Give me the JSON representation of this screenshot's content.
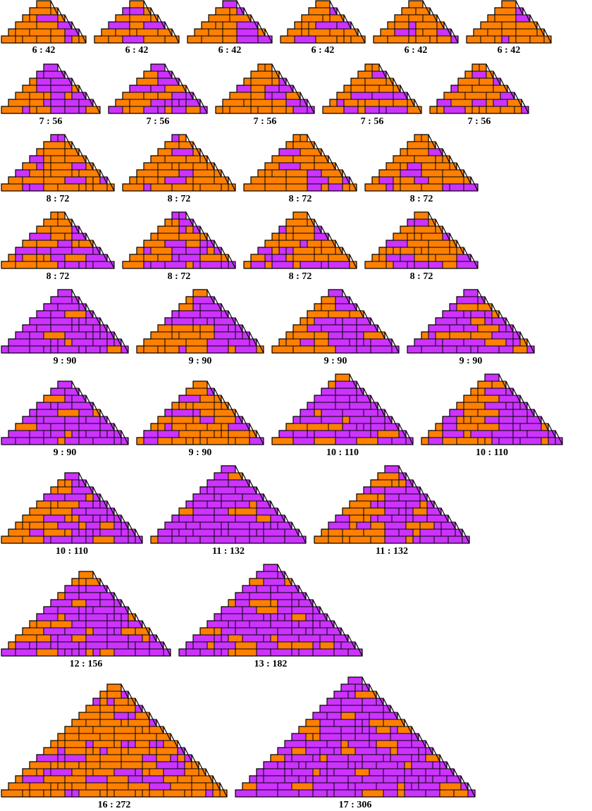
{
  "colors": {
    "purple": "#CC33FF",
    "orange": "#FF8000",
    "outline": "#000000",
    "background": "#FFFFFF"
  },
  "figures": [
    {
      "label": "6 : 42",
      "rows": 6,
      "scheme": "mostly-orange"
    },
    {
      "label": "6 : 42",
      "rows": 6,
      "scheme": "mostly-orange"
    },
    {
      "label": "6 : 42",
      "rows": 6,
      "scheme": "mostly-orange"
    },
    {
      "label": "6 : 42",
      "rows": 6,
      "scheme": "mostly-orange"
    },
    {
      "label": "6 : 42",
      "rows": 6,
      "scheme": "mostly-orange"
    },
    {
      "label": "6 : 42",
      "rows": 6,
      "scheme": "mostly-orange"
    },
    {
      "label": "7 : 56",
      "rows": 7,
      "scheme": "split"
    },
    {
      "label": "7 : 56",
      "rows": 7,
      "scheme": "split"
    },
    {
      "label": "7 : 56",
      "rows": 7,
      "scheme": "split"
    },
    {
      "label": "7 : 56",
      "rows": 7,
      "scheme": "mostly-orange"
    },
    {
      "label": "7 : 56",
      "rows": 7,
      "scheme": "mostly-orange"
    },
    {
      "label": "8 : 72",
      "rows": 8,
      "scheme": "mostly-orange"
    },
    {
      "label": "8 : 72",
      "rows": 8,
      "scheme": "mostly-orange"
    },
    {
      "label": "8 : 72",
      "rows": 8,
      "scheme": "mostly-orange"
    },
    {
      "label": "8 : 72",
      "rows": 8,
      "scheme": "mostly-orange"
    },
    {
      "label": "8 : 72",
      "rows": 8,
      "scheme": "split"
    },
    {
      "label": "8 : 72",
      "rows": 8,
      "scheme": "split"
    },
    {
      "label": "8 : 72",
      "rows": 8,
      "scheme": "mostly-orange"
    },
    {
      "label": "8 : 72",
      "rows": 8,
      "scheme": "mostly-orange"
    },
    {
      "label": "9 : 90",
      "rows": 9,
      "scheme": "mostly-purple"
    },
    {
      "label": "9 : 90",
      "rows": 9,
      "scheme": "split"
    },
    {
      "label": "9 : 90",
      "rows": 9,
      "scheme": "split"
    },
    {
      "label": "9 : 90",
      "rows": 9,
      "scheme": "mostly-purple"
    },
    {
      "label": "9 : 90",
      "rows": 9,
      "scheme": "mostly-purple"
    },
    {
      "label": "9 : 90",
      "rows": 9,
      "scheme": "mostly-orange"
    },
    {
      "label": "10 : 110",
      "rows": 10,
      "scheme": "mostly-purple"
    },
    {
      "label": "10 : 110",
      "rows": 10,
      "scheme": "split"
    },
    {
      "label": "10 : 110",
      "rows": 10,
      "scheme": "split"
    },
    {
      "label": "11 : 132",
      "rows": 11,
      "scheme": "mostly-purple"
    },
    {
      "label": "11 : 132",
      "rows": 11,
      "scheme": "split"
    },
    {
      "label": "12 : 156",
      "rows": 12,
      "scheme": "mostly-purple"
    },
    {
      "label": "13 : 182",
      "rows": 13,
      "scheme": "mostly-purple"
    },
    {
      "label": "16 : 272",
      "rows": 16,
      "scheme": "mostly-orange"
    },
    {
      "label": "17 : 306",
      "rows": 17,
      "scheme": "mostly-purple"
    }
  ]
}
